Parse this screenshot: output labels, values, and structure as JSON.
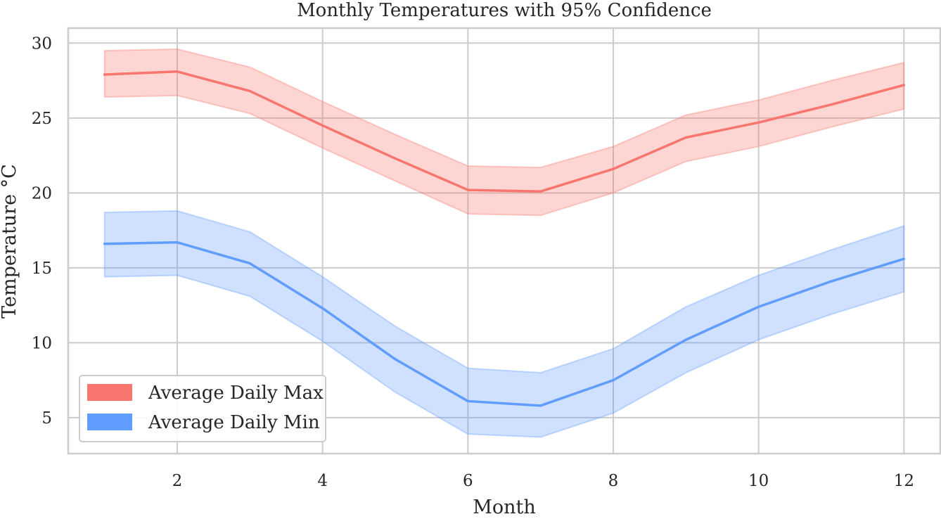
{
  "chart_data": {
    "type": "line",
    "title": "Monthly Temperatures with 95% Confidence",
    "xlabel": "Month",
    "ylabel": "Temperature °C",
    "xlim": [
      0.5,
      12.5
    ],
    "ylim": [
      2.6,
      31.0
    ],
    "xticks": [
      2,
      4,
      6,
      8,
      10,
      12
    ],
    "yticks": [
      5,
      10,
      15,
      20,
      25,
      30
    ],
    "grid": true,
    "legend_position": "lower-left",
    "x": [
      1,
      2,
      3,
      4,
      5,
      6,
      7,
      8,
      9,
      10,
      11,
      12
    ],
    "series": [
      {
        "name": "Average Daily Max",
        "color": "#f8766d",
        "values": [
          27.9,
          28.1,
          26.8,
          24.5,
          22.3,
          20.2,
          20.1,
          21.6,
          23.7,
          24.7,
          25.9,
          27.2
        ],
        "lower": [
          26.4,
          26.5,
          25.3,
          23.0,
          20.8,
          18.6,
          18.5,
          20.0,
          22.1,
          23.1,
          24.4,
          25.6
        ],
        "upper": [
          29.5,
          29.6,
          28.4,
          26.1,
          23.9,
          21.8,
          21.7,
          23.1,
          25.2,
          26.2,
          27.5,
          28.7
        ]
      },
      {
        "name": "Average Daily Min",
        "color": "#619cff",
        "values": [
          16.6,
          16.7,
          15.3,
          12.3,
          8.9,
          6.1,
          5.8,
          7.5,
          10.2,
          12.4,
          14.1,
          15.6
        ],
        "lower": [
          14.4,
          14.5,
          13.1,
          10.1,
          6.7,
          3.9,
          3.7,
          5.3,
          8.0,
          10.2,
          11.9,
          13.4
        ],
        "upper": [
          18.7,
          18.8,
          17.4,
          14.4,
          11.1,
          8.3,
          8.0,
          9.6,
          12.4,
          14.5,
          16.2,
          17.8
        ]
      }
    ]
  }
}
